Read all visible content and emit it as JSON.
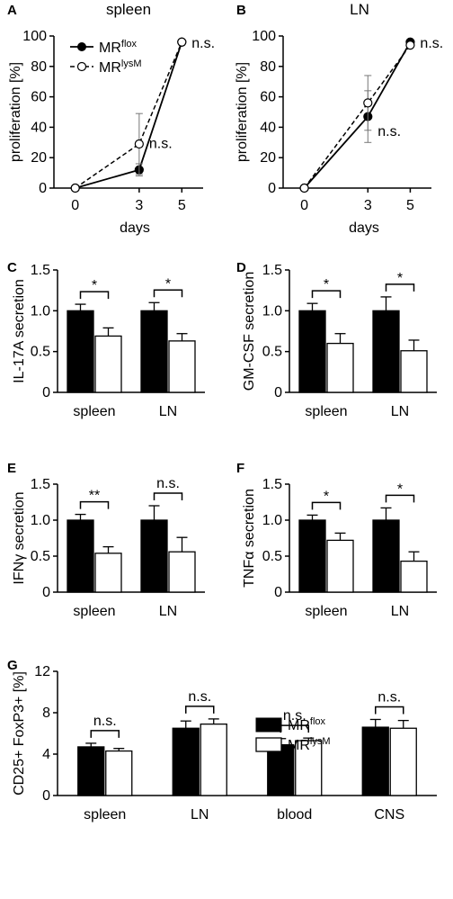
{
  "legend_top": {
    "flox": "MR",
    "flox_sup": "flox",
    "lysm": "MR",
    "lysm_sup": "lysM"
  },
  "legend_g": {
    "flox": "MR",
    "flox_sup": "flox",
    "lysm": "MR",
    "lysm_sup": "lysM"
  },
  "chart_data": [
    {
      "panel": "A",
      "type": "line",
      "title": "spleen",
      "xlabel": "days",
      "ylabel": "proliferation [%]",
      "x": [
        0,
        3,
        5
      ],
      "xlim": [
        -1,
        6
      ],
      "ylim": [
        0,
        100
      ],
      "xticks": [
        0,
        3,
        5
      ],
      "yticks": [
        0,
        20,
        40,
        60,
        80,
        100
      ],
      "series": [
        {
          "name": "MRflox",
          "values": [
            0,
            12,
            96
          ],
          "err": [
            0,
            4,
            0
          ],
          "style": "solid",
          "marker": "filled"
        },
        {
          "name": "MRlysM",
          "values": [
            0,
            29,
            96
          ],
          "err": [
            0,
            20,
            0
          ],
          "style": "dashed",
          "marker": "open"
        }
      ],
      "annotations": [
        {
          "text": "n.s.",
          "x": 5,
          "y": 96
        },
        {
          "text": "n.s.",
          "x": 3,
          "y": 30
        }
      ]
    },
    {
      "panel": "B",
      "type": "line",
      "title": "LN",
      "xlabel": "days",
      "ylabel": "proliferation [%]",
      "x": [
        0,
        3,
        5
      ],
      "xlim": [
        -1,
        6
      ],
      "ylim": [
        0,
        100
      ],
      "xticks": [
        0,
        3,
        5
      ],
      "yticks": [
        0,
        20,
        40,
        60,
        80,
        100
      ],
      "series": [
        {
          "name": "MRflox",
          "values": [
            0,
            47,
            96
          ],
          "err": [
            0,
            17,
            0
          ],
          "style": "solid",
          "marker": "filled"
        },
        {
          "name": "MRlysM",
          "values": [
            0,
            56,
            94
          ],
          "err": [
            0,
            18,
            0
          ],
          "style": "dashed",
          "marker": "open"
        }
      ],
      "annotations": [
        {
          "text": "n.s.",
          "x": 5,
          "y": 96
        },
        {
          "text": "n.s.",
          "x": 3,
          "y": 38
        }
      ]
    },
    {
      "panel": "C",
      "type": "bar",
      "ylabel": "IL-17A secretion",
      "categories": [
        "spleen",
        "LN"
      ],
      "ylim": [
        0,
        1.5
      ],
      "yticks": [
        "0",
        "0.5",
        "1.0",
        "1.5"
      ],
      "series": [
        {
          "name": "MRflox",
          "values": [
            1.0,
            1.0
          ],
          "err": [
            0.08,
            0.1
          ]
        },
        {
          "name": "MRlysM",
          "values": [
            0.69,
            0.63
          ],
          "err": [
            0.1,
            0.09
          ]
        }
      ],
      "significance": [
        "*",
        "*"
      ]
    },
    {
      "panel": "D",
      "type": "bar",
      "ylabel": "GM-CSF secretion",
      "categories": [
        "spleen",
        "LN"
      ],
      "ylim": [
        0,
        1.5
      ],
      "yticks": [
        "0",
        "0.5",
        "1.0",
        "1.5"
      ],
      "series": [
        {
          "name": "MRflox",
          "values": [
            1.0,
            1.0
          ],
          "err": [
            0.09,
            0.17
          ]
        },
        {
          "name": "MRlysM",
          "values": [
            0.6,
            0.51
          ],
          "err": [
            0.12,
            0.13
          ]
        }
      ],
      "significance": [
        "*",
        "*"
      ]
    },
    {
      "panel": "E",
      "type": "bar",
      "ylabel": "IFNγ secretion",
      "categories": [
        "spleen",
        "LN"
      ],
      "ylim": [
        0,
        1.5
      ],
      "yticks": [
        "0",
        "0.5",
        "1.0",
        "1.5"
      ],
      "series": [
        {
          "name": "MRflox",
          "values": [
            1.0,
            1.0
          ],
          "err": [
            0.08,
            0.2
          ]
        },
        {
          "name": "MRlysM",
          "values": [
            0.54,
            0.56
          ],
          "err": [
            0.09,
            0.2
          ]
        }
      ],
      "significance": [
        "**",
        "n.s."
      ]
    },
    {
      "panel": "F",
      "type": "bar",
      "ylabel": "TNFα secretion",
      "categories": [
        "spleen",
        "LN"
      ],
      "ylim": [
        0,
        1.5
      ],
      "yticks": [
        "0",
        "0.5",
        "1.0",
        "1.5"
      ],
      "series": [
        {
          "name": "MRflox",
          "values": [
            1.0,
            1.0
          ],
          "err": [
            0.07,
            0.17
          ]
        },
        {
          "name": "MRlysM",
          "values": [
            0.72,
            0.43
          ],
          "err": [
            0.1,
            0.13
          ]
        }
      ],
      "significance": [
        "*",
        "*"
      ]
    },
    {
      "panel": "G",
      "type": "bar",
      "ylabel": "CD25+ FoxP3+ [%]",
      "categories": [
        "spleen",
        "LN",
        "blood",
        "CNS"
      ],
      "ylim": [
        0,
        12
      ],
      "yticks": [
        "0",
        "4",
        "8",
        "12"
      ],
      "series": [
        {
          "name": "MRflox",
          "values": [
            4.7,
            6.5,
            4.9,
            6.6
          ],
          "err": [
            0.35,
            0.7,
            0.6,
            0.75
          ]
        },
        {
          "name": "MRlysM",
          "values": [
            4.3,
            6.9,
            5.3,
            6.5
          ],
          "err": [
            0.25,
            0.5,
            0.25,
            0.75
          ]
        }
      ],
      "significance": [
        "n.s.",
        "n.s.",
        "n.s.",
        "n.s."
      ]
    }
  ]
}
